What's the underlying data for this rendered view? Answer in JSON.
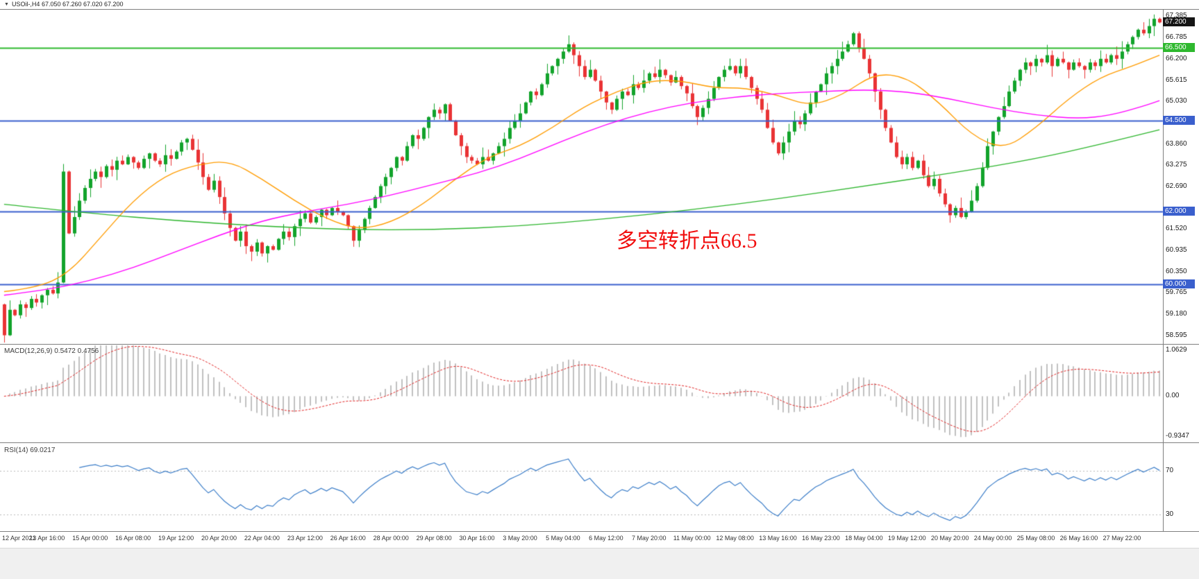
{
  "header": {
    "icon_glyph": "▼",
    "symbol_text": "USOil-,H4 67.050 67.260 67.020 67.200"
  },
  "annotation": {
    "text": "多空转折点66.5",
    "color": "#f10e0e"
  },
  "chart_data": {
    "type": "candlestick",
    "title": "USOil-,H4",
    "symbol": "USOil-",
    "timeframe": "H4",
    "current_bar": {
      "open": 67.05,
      "high": 67.26,
      "low": 67.02,
      "close": 67.2
    },
    "price_range": {
      "top": 67.55,
      "bottom": 58.4
    },
    "first_open": 59.45,
    "closes": [
      58.6,
      59.3,
      59.15,
      59.45,
      59.35,
      59.6,
      59.5,
      59.7,
      59.85,
      59.75,
      60.05,
      63.1,
      61.4,
      61.85,
      62.3,
      62.65,
      62.9,
      63.1,
      62.95,
      63.25,
      63.15,
      63.4,
      63.3,
      63.5,
      63.35,
      63.2,
      63.45,
      63.6,
      63.4,
      63.3,
      63.55,
      63.45,
      63.65,
      63.9,
      64.0,
      63.7,
      63.35,
      62.95,
      62.6,
      62.85,
      62.4,
      61.95,
      61.55,
      61.2,
      61.45,
      61.05,
      60.9,
      61.15,
      60.85,
      61.05,
      60.95,
      61.25,
      61.45,
      61.3,
      61.6,
      61.8,
      61.95,
      61.7,
      61.85,
      62.05,
      61.9,
      62.1,
      62.0,
      61.9,
      61.6,
      61.2,
      61.5,
      61.8,
      62.1,
      62.4,
      62.7,
      62.95,
      63.2,
      63.5,
      63.4,
      63.8,
      64.1,
      64.0,
      64.3,
      64.6,
      64.8,
      64.7,
      64.95,
      64.5,
      64.1,
      63.8,
      63.5,
      63.4,
      63.3,
      63.5,
      63.4,
      63.6,
      63.8,
      64.0,
      64.3,
      64.5,
      64.7,
      65.0,
      65.3,
      65.2,
      65.5,
      65.8,
      66.0,
      66.2,
      66.4,
      66.6,
      66.3,
      66.0,
      65.7,
      65.9,
      65.6,
      65.3,
      65.0,
      64.8,
      65.1,
      65.3,
      65.2,
      65.5,
      65.4,
      65.6,
      65.8,
      65.7,
      65.9,
      65.75,
      65.55,
      65.7,
      65.45,
      65.25,
      64.9,
      64.6,
      64.85,
      65.1,
      65.4,
      65.7,
      65.9,
      66.0,
      65.8,
      66.0,
      65.7,
      65.4,
      65.1,
      64.8,
      64.3,
      63.9,
      63.6,
      63.9,
      64.2,
      64.5,
      64.4,
      64.7,
      65.0,
      65.3,
      65.5,
      65.8,
      66.0,
      66.2,
      66.4,
      66.6,
      66.9,
      66.5,
      66.2,
      65.8,
      65.3,
      64.8,
      64.3,
      63.9,
      63.5,
      63.3,
      63.5,
      63.2,
      63.4,
      63.0,
      62.7,
      62.9,
      62.5,
      62.2,
      61.9,
      62.1,
      61.85,
      62.0,
      62.3,
      62.7,
      63.2,
      63.8,
      64.2,
      64.6,
      64.9,
      65.3,
      65.6,
      65.9,
      66.1,
      66.0,
      66.2,
      66.1,
      66.3,
      66.0,
      66.2,
      66.1,
      65.9,
      66.1,
      66.0,
      65.9,
      66.1,
      66.0,
      66.2,
      66.1,
      66.3,
      66.2,
      66.4,
      66.6,
      66.8,
      67.0,
      66.9,
      67.1,
      67.3,
      67.2
    ],
    "candle_colors": {
      "up": "#12a32b",
      "down": "#e93335"
    },
    "moving_averages": [
      {
        "name": "ma-fast",
        "color": "#ff9c00",
        "points": [
          [
            0,
            59.8
          ],
          [
            6,
            59.9
          ],
          [
            12,
            60.3
          ],
          [
            18,
            61.3
          ],
          [
            24,
            62.3
          ],
          [
            30,
            63.0
          ],
          [
            36,
            63.3
          ],
          [
            42,
            63.4
          ],
          [
            48,
            62.9
          ],
          [
            54,
            62.3
          ],
          [
            60,
            61.8
          ],
          [
            66,
            61.5
          ],
          [
            72,
            61.7
          ],
          [
            78,
            62.2
          ],
          [
            84,
            62.9
          ],
          [
            90,
            63.5
          ],
          [
            96,
            63.8
          ],
          [
            102,
            64.3
          ],
          [
            108,
            64.9
          ],
          [
            114,
            65.3
          ],
          [
            120,
            65.6
          ],
          [
            126,
            65.6
          ],
          [
            132,
            65.4
          ],
          [
            138,
            65.4
          ],
          [
            144,
            65.2
          ],
          [
            150,
            64.9
          ],
          [
            156,
            65.2
          ],
          [
            162,
            65.8
          ],
          [
            168,
            65.7
          ],
          [
            174,
            65.0
          ],
          [
            180,
            64.1
          ],
          [
            186,
            63.7
          ],
          [
            192,
            64.3
          ],
          [
            198,
            65.1
          ],
          [
            204,
            65.7
          ],
          [
            210,
            66.0
          ],
          [
            215,
            66.3
          ]
        ]
      },
      {
        "name": "ma-mid",
        "color": "#ff00ff",
        "points": [
          [
            0,
            59.7
          ],
          [
            8,
            59.85
          ],
          [
            16,
            60.1
          ],
          [
            24,
            60.45
          ],
          [
            32,
            60.9
          ],
          [
            40,
            61.35
          ],
          [
            48,
            61.75
          ],
          [
            56,
            62.0
          ],
          [
            64,
            62.2
          ],
          [
            72,
            62.45
          ],
          [
            80,
            62.75
          ],
          [
            88,
            63.05
          ],
          [
            96,
            63.45
          ],
          [
            104,
            63.95
          ],
          [
            112,
            64.4
          ],
          [
            120,
            64.75
          ],
          [
            128,
            65.0
          ],
          [
            136,
            65.15
          ],
          [
            144,
            65.25
          ],
          [
            152,
            65.3
          ],
          [
            160,
            65.35
          ],
          [
            168,
            65.3
          ],
          [
            176,
            65.1
          ],
          [
            184,
            64.85
          ],
          [
            192,
            64.65
          ],
          [
            200,
            64.55
          ],
          [
            206,
            64.65
          ],
          [
            212,
            64.9
          ],
          [
            215,
            65.05
          ]
        ]
      },
      {
        "name": "ma-slow",
        "color": "#2db52d",
        "points": [
          [
            0,
            62.2
          ],
          [
            16,
            61.95
          ],
          [
            32,
            61.75
          ],
          [
            48,
            61.6
          ],
          [
            64,
            61.5
          ],
          [
            80,
            61.5
          ],
          [
            96,
            61.6
          ],
          [
            112,
            61.8
          ],
          [
            128,
            62.05
          ],
          [
            144,
            62.35
          ],
          [
            160,
            62.7
          ],
          [
            176,
            63.05
          ],
          [
            192,
            63.45
          ],
          [
            204,
            63.85
          ],
          [
            215,
            64.25
          ]
        ]
      }
    ],
    "hlines": [
      {
        "price": 66.5,
        "label": "66.500",
        "color": "#2eb82e"
      },
      {
        "price": 64.5,
        "label": "64.500",
        "color": "#3a5fcd"
      },
      {
        "price": 62.0,
        "label": "62.000",
        "color": "#3a5fcd"
      },
      {
        "price": 60.0,
        "label": "60.000",
        "color": "#3a5fcd"
      }
    ],
    "current_price": {
      "value": 67.2,
      "label": "67.200",
      "box_color": "#151515"
    },
    "price_axis_ticks": [
      "67.385",
      "66.785",
      "66.200",
      "65.615",
      "65.030",
      "63.860",
      "63.275",
      "62.690",
      "61.520",
      "60.935",
      "60.350",
      "59.765",
      "59.180",
      "58.595"
    ],
    "indicators": {
      "macd": {
        "label": "MACD(12,26,9) 0.5472 0.4756",
        "fast": 12,
        "slow": 26,
        "signal": 9,
        "ylim": [
          -0.9347,
          1.0629
        ],
        "axis_ticks": [
          "1.0629",
          "0.00",
          "-0.9347"
        ],
        "histogram_color": "#c0c0c0",
        "signal_color": "#e02020"
      },
      "rsi": {
        "label": "RSI(14) 69.0217",
        "period": 14,
        "ylim": [
          15,
          95
        ],
        "levels": [
          70,
          30
        ],
        "line_color": "#3b7dc8",
        "level_color": "#b8b8b8"
      }
    },
    "x_axis_labels": [
      "12 Apr 2021",
      "13 Apr 16:00",
      "15 Apr 00:00",
      "16 Apr 08:00",
      "19 Apr 12:00",
      "20 Apr 20:00",
      "22 Apr 04:00",
      "23 Apr 12:00",
      "26 Apr 16:00",
      "28 Apr 00:00",
      "29 Apr 08:00",
      "30 Apr 16:00",
      "3 May 20:00",
      "5 May 04:00",
      "6 May 12:00",
      "7 May 20:00",
      "11 May 00:00",
      "12 May 08:00",
      "13 May 16:00",
      "16 May 23:00",
      "18 May 04:00",
      "19 May 12:00",
      "20 May 20:00",
      "24 May 00:00",
      "25 May 08:00",
      "26 May 16:00",
      "27 May 22:00"
    ]
  }
}
